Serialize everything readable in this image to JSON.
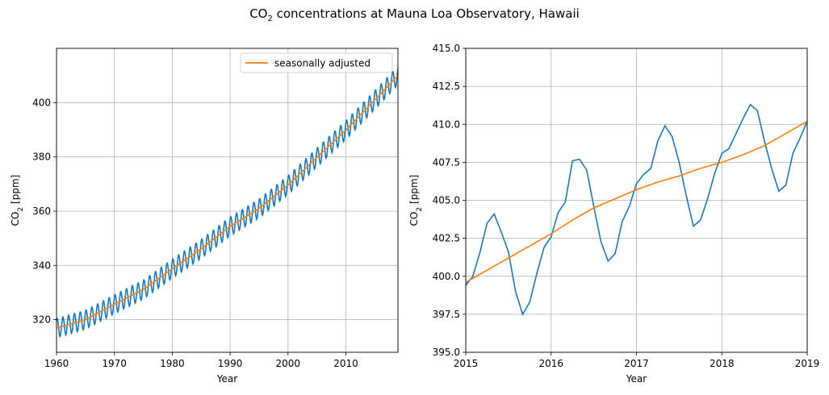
{
  "figure": {
    "title_prefix": "CO",
    "title_sub": "2",
    "title_suffix": " concentrations at Mauna Loa Observatory, Hawaii"
  },
  "colors": {
    "raw": "#1f77b4",
    "adjusted": "#ff7f0e",
    "grid": "#b0b0b0"
  },
  "chart_data": [
    {
      "type": "line",
      "xlabel": "Year",
      "ylabel_prefix": "CO",
      "ylabel_sub": "2",
      "ylabel_suffix": " [ppm]",
      "xlim": [
        1960,
        2019
      ],
      "ylim": [
        308,
        420
      ],
      "xticks": [
        1960,
        1970,
        1980,
        1990,
        2000,
        2010
      ],
      "xtick_labels": [
        "1960",
        "1970",
        "1980",
        "1990",
        "2000",
        "2010"
      ],
      "yticks": [
        320,
        340,
        360,
        380,
        400
      ],
      "ytick_labels": [
        "320",
        "340",
        "360",
        "380",
        "400"
      ],
      "grid": true,
      "legend": {
        "position": "top-right",
        "entries": [
          "seasonally adjusted"
        ]
      },
      "series": [
        {
          "key": "raw",
          "color": "#1f77b4",
          "description": "monthly values oscillating about the trend, amplitude ~3.5 ppm (sampled yearly trend shown below)",
          "trend_x": [
            1960,
            1965,
            1970,
            1975,
            1980,
            1985,
            1990,
            1995,
            2000,
            2005,
            2010,
            2015,
            2019
          ],
          "trend_y": [
            316.9,
            320.0,
            325.7,
            331.1,
            338.8,
            346.1,
            354.4,
            361.0,
            369.6,
            379.8,
            389.9,
            401.0,
            410.0
          ],
          "seasonal_amplitude": 3.5
        },
        {
          "key": "adjusted",
          "name": "seasonally adjusted",
          "color": "#ff7f0e",
          "x": [
            1960,
            1965,
            1970,
            1975,
            1980,
            1985,
            1990,
            1995,
            2000,
            2005,
            2010,
            2015,
            2019
          ],
          "y": [
            316.9,
            320.0,
            325.7,
            331.1,
            338.8,
            346.1,
            354.4,
            361.0,
            369.6,
            379.8,
            389.9,
            401.0,
            410.0
          ]
        }
      ]
    },
    {
      "type": "line",
      "xlabel": "Year",
      "ylabel_prefix": "CO",
      "ylabel_sub": "2",
      "ylabel_suffix": " [ppm]",
      "xlim": [
        2015,
        2019
      ],
      "ylim": [
        395.0,
        415.0
      ],
      "xticks": [
        2015,
        2016,
        2017,
        2018,
        2019
      ],
      "xtick_labels": [
        "2015",
        "2016",
        "2017",
        "2018",
        "2019"
      ],
      "yticks": [
        395.0,
        397.5,
        400.0,
        402.5,
        405.0,
        407.5,
        410.0,
        412.5,
        415.0
      ],
      "ytick_labels": [
        "395.0",
        "397.5",
        "400.0",
        "402.5",
        "405.0",
        "407.5",
        "410.0",
        "412.5",
        "415.0"
      ],
      "grid": true,
      "series": [
        {
          "key": "raw",
          "color": "#1f77b4",
          "x": [
            2015.0,
            2015.083,
            2015.167,
            2015.25,
            2015.333,
            2015.417,
            2015.5,
            2015.583,
            2015.667,
            2015.75,
            2015.833,
            2015.917,
            2016.0,
            2016.083,
            2016.167,
            2016.25,
            2016.333,
            2016.417,
            2016.5,
            2016.583,
            2016.667,
            2016.75,
            2016.833,
            2016.917,
            2017.0,
            2017.083,
            2017.167,
            2017.25,
            2017.333,
            2017.417,
            2017.5,
            2017.583,
            2017.667,
            2017.75,
            2017.833,
            2017.917,
            2018.0,
            2018.083,
            2018.167,
            2018.25,
            2018.333,
            2018.417,
            2018.5,
            2018.583,
            2018.667,
            2018.75,
            2018.833,
            2018.917,
            2019.0
          ],
          "y": [
            399.4,
            400.0,
            401.6,
            403.5,
            404.1,
            402.9,
            401.6,
            399.0,
            397.5,
            398.3,
            400.2,
            401.9,
            402.6,
            404.2,
            404.9,
            407.6,
            407.7,
            407.0,
            404.6,
            402.3,
            401.0,
            401.5,
            403.6,
            404.6,
            406.1,
            406.7,
            407.1,
            408.9,
            409.9,
            409.2,
            407.5,
            405.3,
            403.3,
            403.7,
            405.1,
            406.8,
            408.1,
            408.4,
            409.4,
            410.4,
            411.3,
            410.9,
            408.9,
            407.1,
            405.6,
            406.0,
            408.1,
            409.1,
            410.2
          ]
        },
        {
          "key": "adjusted",
          "name": "seasonally adjusted",
          "color": "#ff7f0e",
          "x": [
            2015.0,
            2015.25,
            2015.5,
            2015.75,
            2016.0,
            2016.25,
            2016.5,
            2016.75,
            2017.0,
            2017.25,
            2017.5,
            2017.75,
            2018.0,
            2018.25,
            2018.5,
            2018.75,
            2019.0
          ],
          "y": [
            399.6,
            400.4,
            401.2,
            402.0,
            402.8,
            403.7,
            404.5,
            405.1,
            405.7,
            406.2,
            406.6,
            407.1,
            407.5,
            408.0,
            408.6,
            409.4,
            410.2
          ]
        }
      ]
    }
  ]
}
